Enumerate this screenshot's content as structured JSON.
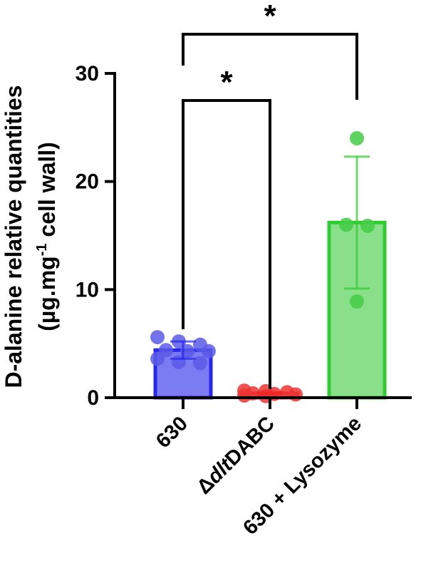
{
  "chart_data": {
    "type": "bar",
    "categories": [
      "630",
      "ΔdltDABC",
      "630 + Lysozyme"
    ],
    "ylabel_line1": "D-alanine relative quantities",
    "ylabel_line2_pre": "(µg.mg",
    "ylabel_line2_sup": "-1",
    "ylabel_line2_post": " cell wall)",
    "xlabel": "",
    "ylim": [
      0,
      30
    ],
    "yticks": [
      0,
      10,
      20,
      30
    ],
    "grid": false,
    "legend": "none",
    "series": [
      {
        "values": [
          4.4,
          0.4,
          16.2
        ],
        "error": [
          0.8,
          0.1,
          6.1
        ],
        "points": [
          [
            5.6,
            5.2,
            4.9,
            4.4,
            4.3,
            4.3,
            3.6,
            3.3,
            3.2
          ],
          [
            0.65,
            0.6,
            0.5,
            0.4,
            0.35,
            0.3,
            0.2,
            0.15
          ],
          [
            24.0,
            16.0,
            15.9,
            8.9
          ]
        ]
      }
    ],
    "colors": {
      "bar_fill": [
        "#7b7cf2",
        "#f08585",
        "#8adf8a"
      ],
      "bar_edge": [
        "#2626ee",
        "#ee2222",
        "#2ecc2e"
      ],
      "point": [
        "#5a5ae8",
        "#ee3434",
        "#44cc44"
      ]
    },
    "significance": [
      {
        "from": 0,
        "to": 1,
        "label": "*"
      },
      {
        "from": 0,
        "to": 2,
        "label": "*"
      }
    ]
  }
}
